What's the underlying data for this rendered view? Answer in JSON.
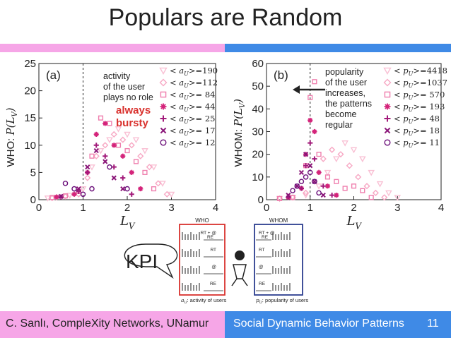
{
  "slide": {
    "title": "Populars are Random",
    "footer_left": "C. Sanlı, CompleXity Networks, UNamur",
    "footer_right": "Social Dynamic Behavior Patterns",
    "page_number": "11",
    "kpi": "KPI"
  },
  "colors": {
    "pink_bar": "#f6a6e7",
    "blue_bar": "#3f8ae6",
    "dark_purple": "#6b0f7a",
    "magenta": "#d4237a",
    "light_pink": "#f7a8c4",
    "red_box": "#d9322e",
    "blue_box": "#2c3e8f"
  },
  "chart_data": [
    {
      "type": "scatter",
      "panel_label": "(a)",
      "ylabel": "WHO: P(L_V)",
      "xlabel": "L_V",
      "xlim": [
        0,
        4
      ],
      "ylim": [
        0,
        25
      ],
      "xticks": [
        "0",
        "1",
        "2",
        "3",
        "4"
      ],
      "yticks": [
        "0",
        "5",
        "10",
        "15",
        "20",
        "25"
      ],
      "annotation": [
        "activity",
        "of the user",
        "plays no role"
      ],
      "annotation_red": [
        "always",
        "bursty"
      ],
      "legend": [
        {
          "label": "<a_U>=190",
          "marker": "triangle"
        },
        {
          "label": "<a_U>=112",
          "marker": "diamond"
        },
        {
          "label": "<a_U>= 84",
          "marker": "square"
        },
        {
          "label": "<a_U>= 44",
          "marker": "asterisk"
        },
        {
          "label": "<a_U>= 25",
          "marker": "plus"
        },
        {
          "label": "<a_U>= 17",
          "marker": "cross"
        },
        {
          "label": "<a_U>= 12",
          "marker": "circle"
        }
      ],
      "series": [
        {
          "marker": "triangle",
          "color": "#f9c0d4",
          "x": [
            0.2,
            0.4,
            0.7,
            1.0,
            1.2,
            1.4,
            1.6,
            1.8,
            2.0,
            2.2,
            2.4,
            2.6,
            2.8,
            3.0
          ],
          "y": [
            0.3,
            0.4,
            0.8,
            2,
            6,
            9,
            11,
            13,
            12,
            11,
            9,
            6,
            3,
            1
          ]
        },
        {
          "marker": "diamond",
          "color": "#f7a8c4",
          "x": [
            0.3,
            0.6,
            0.9,
            1.1,
            1.3,
            1.5,
            1.7,
            1.9,
            2.1,
            2.3,
            2.5,
            2.7,
            2.9
          ],
          "y": [
            0.3,
            0.6,
            1,
            4,
            8,
            10,
            12,
            11,
            10,
            8,
            6,
            3,
            1
          ]
        },
        {
          "marker": "square",
          "color": "#ef7fae",
          "x": [
            0.3,
            0.6,
            0.9,
            1.2,
            1.4,
            1.6,
            1.8,
            2.0,
            2.2,
            2.4,
            2.6
          ],
          "y": [
            0.4,
            0.7,
            1.5,
            8,
            15,
            14,
            10,
            9,
            7,
            5,
            2
          ]
        },
        {
          "marker": "asterisk",
          "color": "#d4237a",
          "x": [
            0.4,
            0.8,
            1.1,
            1.3,
            1.5,
            1.7,
            1.9,
            2.1,
            2.3
          ],
          "y": [
            0.5,
            1,
            5,
            12,
            14,
            10,
            8,
            5,
            2
          ]
        },
        {
          "marker": "plus",
          "color": "#a2197a",
          "x": [
            0.5,
            0.9,
            1.1,
            1.3,
            1.5,
            1.7,
            1.9,
            2.1
          ],
          "y": [
            0.5,
            1.5,
            5,
            10,
            8,
            6,
            4,
            1
          ]
        },
        {
          "marker": "cross",
          "color": "#8a1578",
          "x": [
            0.5,
            0.9,
            1.1,
            1.3,
            1.5,
            1.7,
            1.9
          ],
          "y": [
            0.6,
            2,
            6,
            9,
            7,
            4,
            2
          ]
        },
        {
          "marker": "circle",
          "color": "#6b0f7a",
          "x": [
            0.6,
            0.8,
            1.0,
            1.2,
            1.6,
            2.0
          ],
          "y": [
            3,
            2,
            1,
            2,
            6,
            2
          ]
        }
      ]
    },
    {
      "type": "scatter",
      "panel_label": "(b)",
      "ylabel": "WHOM: P(L_V)",
      "xlabel": "L_V",
      "xlim": [
        0,
        4
      ],
      "ylim": [
        0,
        60
      ],
      "xticks": [
        "0",
        "1",
        "2",
        "3",
        "4"
      ],
      "yticks": [
        "0",
        "10",
        "20",
        "30",
        "40",
        "50",
        "60"
      ],
      "annotation": [
        "popularity",
        "of the user",
        "increases,",
        "the patterns",
        "become",
        "regular"
      ],
      "legend": [
        {
          "label": "<p_U>=4418",
          "marker": "triangle"
        },
        {
          "label": "<p_U>=1037",
          "marker": "diamond"
        },
        {
          "label": "<p_U>= 570",
          "marker": "square"
        },
        {
          "label": "<p_U>= 193",
          "marker": "asterisk"
        },
        {
          "label": "<p_U>= 48",
          "marker": "plus"
        },
        {
          "label": "<p_U>= 18",
          "marker": "cross"
        },
        {
          "label": "<p_U>= 11",
          "marker": "circle"
        }
      ],
      "series": [
        {
          "marker": "triangle",
          "color": "#f9c0d4",
          "x": [
            0.3,
            0.6,
            0.9,
            1.2,
            1.4,
            1.6,
            1.8,
            2.0,
            2.2,
            2.4,
            2.6,
            2.8,
            3.0
          ],
          "y": [
            0.5,
            1,
            2,
            6,
            12,
            18,
            25,
            22,
            18,
            12,
            7,
            3,
            1
          ]
        },
        {
          "marker": "diamond",
          "color": "#f7a8c4",
          "x": [
            0.3,
            0.6,
            0.9,
            1.1,
            1.3,
            1.5,
            1.7,
            1.9,
            2.1,
            2.3,
            2.5,
            2.7
          ],
          "y": [
            0.5,
            1,
            3,
            8,
            18,
            22,
            20,
            15,
            10,
            6,
            3,
            1
          ]
        },
        {
          "marker": "square",
          "color": "#ef7fae",
          "x": [
            0.3,
            0.6,
            0.9,
            1.0,
            1.1,
            1.2,
            1.4,
            1.6,
            1.8,
            2.0,
            2.2,
            2.4
          ],
          "y": [
            0.5,
            1,
            15,
            45,
            52,
            20,
            10,
            8,
            5,
            6,
            4,
            1
          ]
        },
        {
          "marker": "asterisk",
          "color": "#d4237a",
          "x": [
            0.5,
            0.8,
            0.9,
            1.0,
            1.1,
            1.2,
            1.4,
            1.6
          ],
          "y": [
            1,
            5,
            20,
            35,
            30,
            12,
            6,
            2
          ]
        },
        {
          "marker": "plus",
          "color": "#a2197a",
          "x": [
            0.5,
            0.8,
            0.9,
            1.0,
            1.1,
            1.3,
            1.5
          ],
          "y": [
            1,
            5,
            15,
            25,
            18,
            6,
            2
          ]
        },
        {
          "marker": "cross",
          "color": "#8a1578",
          "x": [
            0.5,
            0.7,
            0.8,
            0.9,
            1.0,
            1.1,
            1.3
          ],
          "y": [
            2,
            6,
            12,
            20,
            15,
            8,
            2
          ]
        },
        {
          "marker": "circle",
          "color": "#6b0f7a",
          "x": [
            0.6,
            0.7,
            0.8,
            0.9,
            1.0,
            1.1,
            1.2
          ],
          "y": [
            4,
            6,
            8,
            10,
            12,
            8,
            3
          ]
        }
      ]
    }
  ],
  "diagram": {
    "who_label": "WHO",
    "whom_label": "WHOM",
    "who_rows": [
      "RT + @",
      "RT",
      "@",
      "RE"
    ],
    "who_row_tags": [
      "RE",
      "",
      "",
      ""
    ],
    "whom_rows": [
      "RT + @",
      "RT",
      "@",
      "RE"
    ],
    "whom_row_tags": [
      "RE",
      "",
      "",
      ""
    ],
    "who_caption": "a_U: activity of users",
    "whom_caption": "p_U: popularity of users"
  }
}
